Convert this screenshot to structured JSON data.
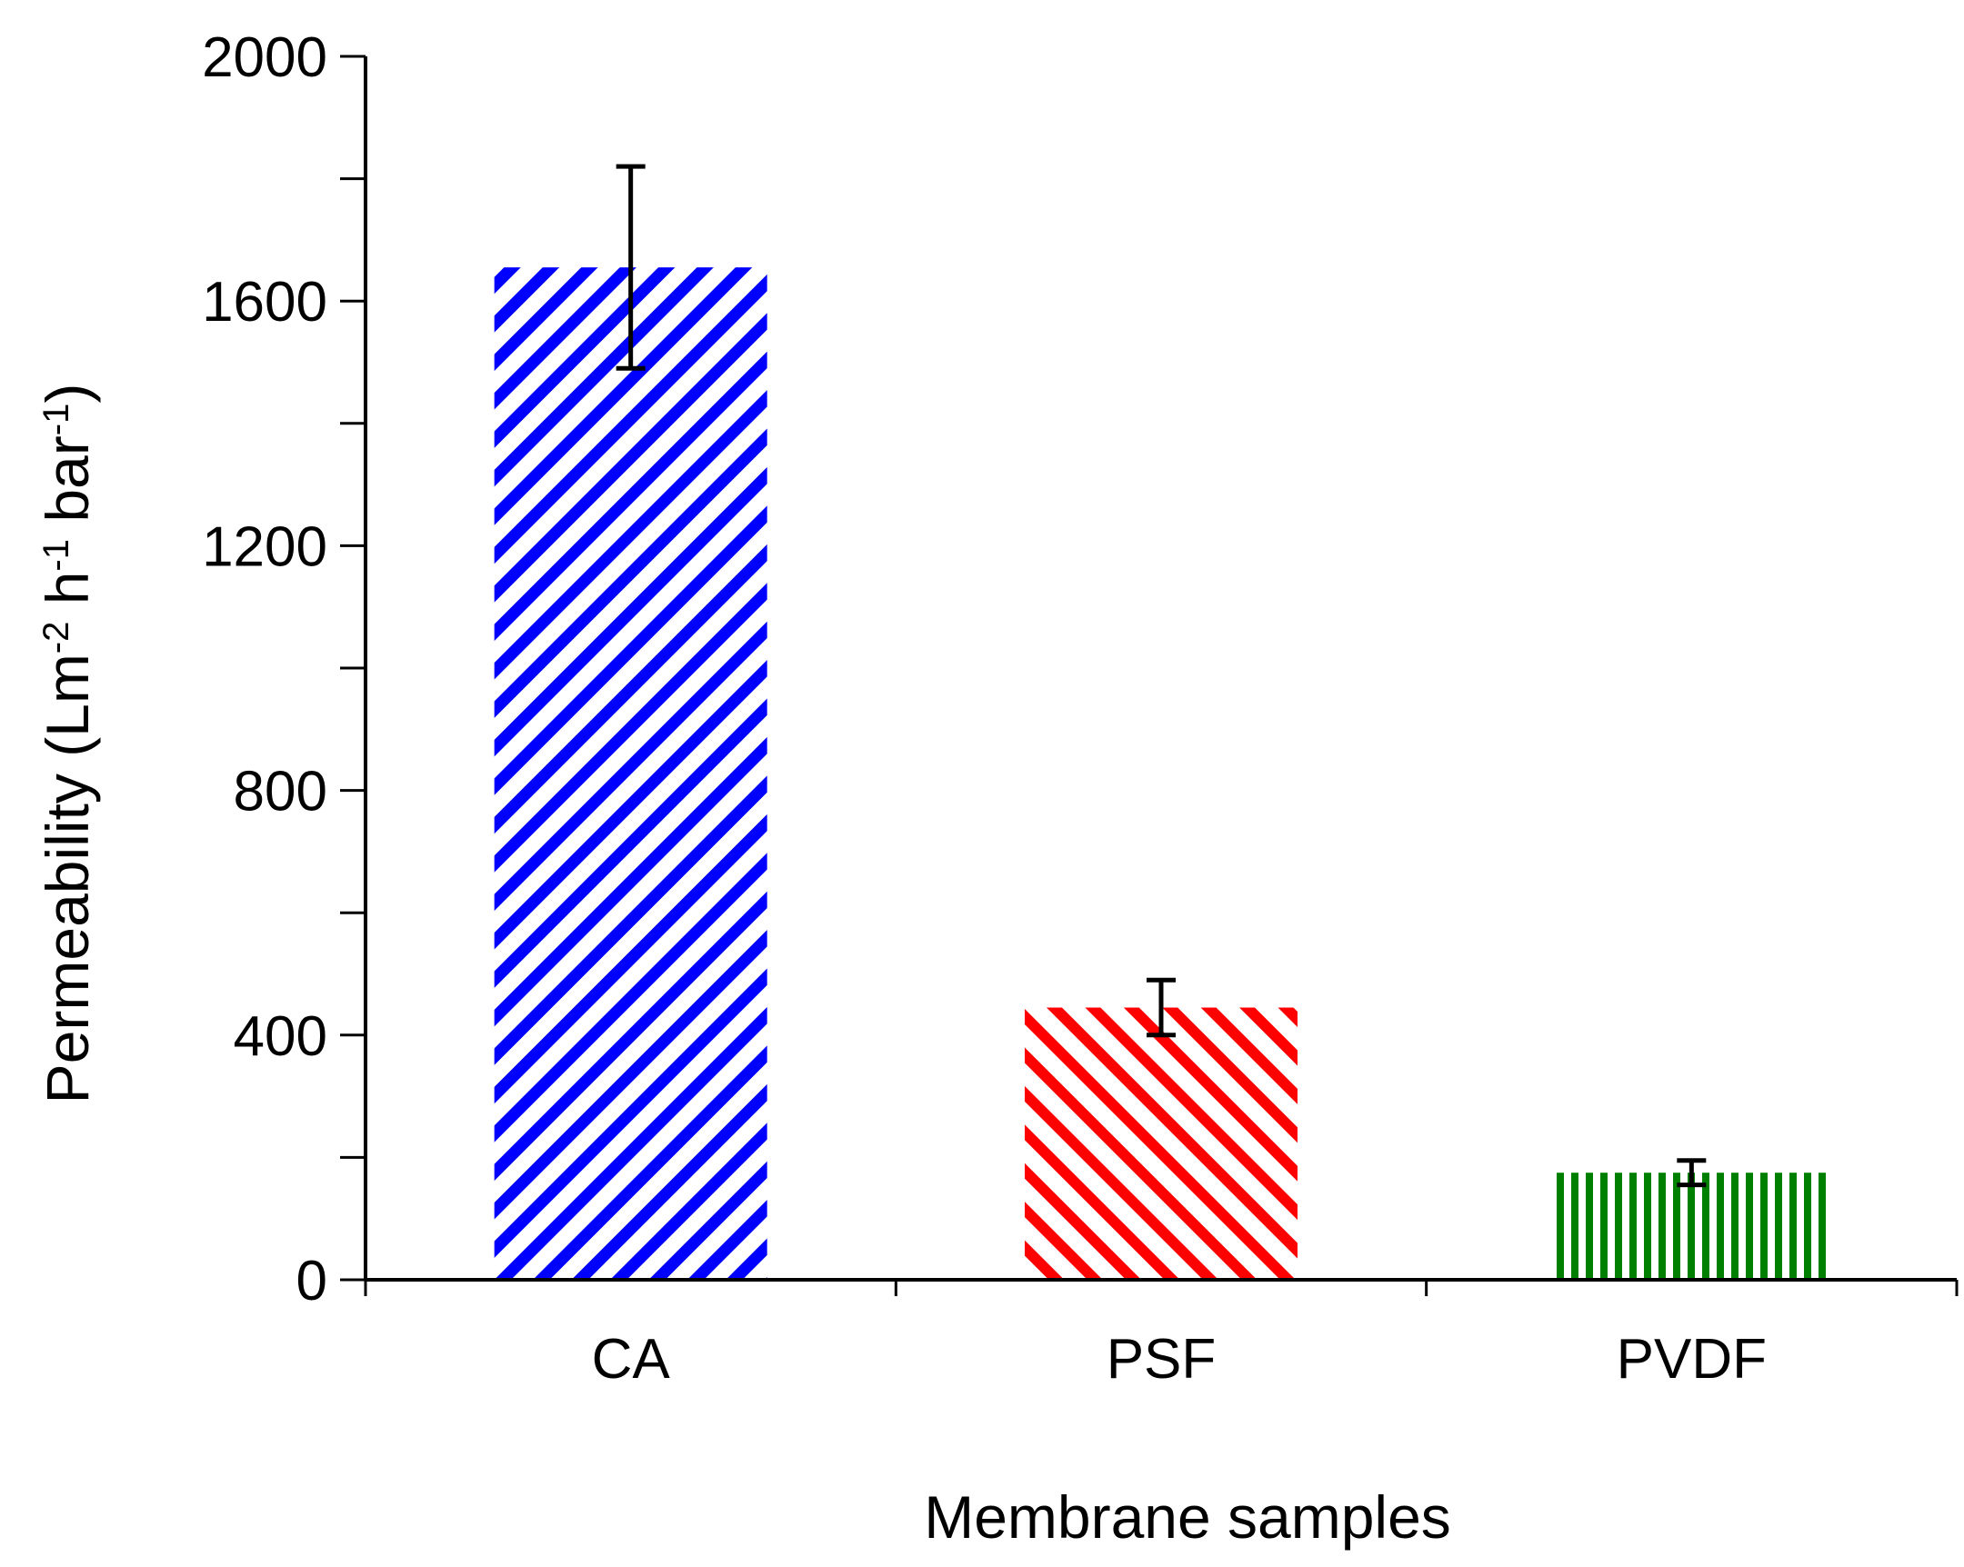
{
  "chart_data": {
    "type": "bar",
    "title": "",
    "categories": [
      "CA",
      "PSF",
      "PVDF"
    ],
    "values": [
      1655,
      445,
      175
    ],
    "errors": [
      165,
      45,
      20
    ],
    "colors": [
      "#0000ff",
      "#ff0000",
      "#008000"
    ],
    "patterns": [
      "diagonal-up",
      "diagonal-down",
      "vertical"
    ],
    "xlabel": "Membrane samples",
    "ylabel": {
      "main": "Permeability  (Lm",
      "sup1": "-2",
      "mid1": " h",
      "sup2": "-1",
      "mid2": " bar",
      "sup3": "-1",
      "end": ")"
    },
    "ylim": [
      0,
      2000
    ],
    "yticks": [
      0,
      400,
      800,
      1200,
      1600,
      2000
    ],
    "minor_step": 200,
    "grid": false
  }
}
